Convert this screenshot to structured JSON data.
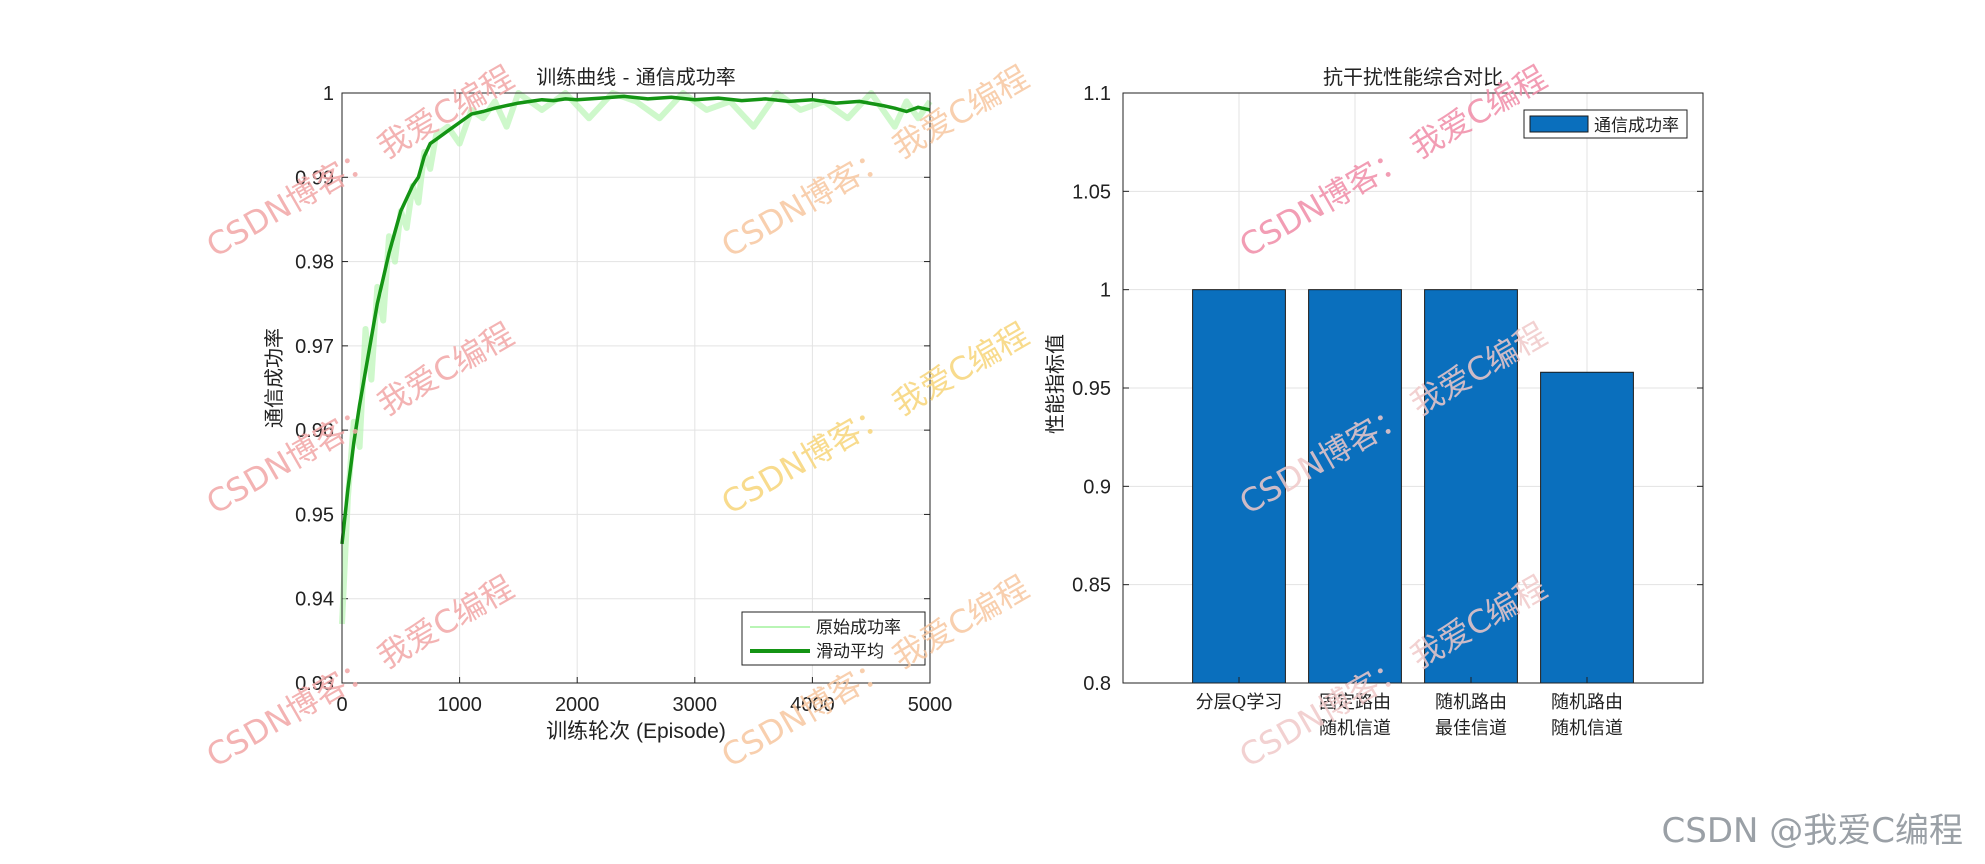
{
  "colors": {
    "raw_line": "#b9f5b5",
    "smooth_line": "#149414",
    "bar": "#0a6fbd",
    "grid": "#e3e3e3",
    "axis": "#222222"
  },
  "watermark": {
    "text": "CSDN博客：  我爱C编程",
    "footer": "CSDN @我爱C编程",
    "colors": [
      "#f2a6a6",
      "#f7c7a0",
      "#f0c9c9",
      "#f7d57a",
      "#f08ca8"
    ]
  },
  "chart_data": [
    {
      "type": "line",
      "title": "训练曲线 - 通信成功率",
      "xlabel": "训练轮次 (Episode)",
      "ylabel": "通信成功率",
      "xlim": [
        0,
        5000
      ],
      "ylim": [
        0.93,
        1.0
      ],
      "xticks": [
        0,
        1000,
        2000,
        3000,
        4000,
        5000
      ],
      "xtick_labels": [
        "0",
        "1000",
        "2000",
        "3000",
        "4000",
        "5000"
      ],
      "yticks": [
        0.93,
        0.94,
        0.95,
        0.96,
        0.97,
        0.98,
        0.99,
        1.0
      ],
      "ytick_labels": [
        "0.93",
        "0.94",
        "0.95",
        "0.96",
        "0.97",
        "0.98",
        "0.99",
        "1"
      ],
      "grid": true,
      "legend_location": "bottom-right",
      "series": [
        {
          "name": "原始成功率",
          "style": "thin-noisy",
          "x": [
            0,
            50,
            100,
            150,
            200,
            250,
            300,
            350,
            400,
            450,
            500,
            550,
            600,
            650,
            700,
            750,
            800,
            900,
            1000,
            1100,
            1200,
            1300,
            1400,
            1500,
            1700,
            1900,
            2100,
            2300,
            2500,
            2700,
            2900,
            3100,
            3300,
            3500,
            3700,
            3900,
            4100,
            4300,
            4500,
            4700,
            4800,
            4900,
            5000
          ],
          "y": [
            0.937,
            0.952,
            0.961,
            0.958,
            0.972,
            0.966,
            0.977,
            0.973,
            0.983,
            0.98,
            0.986,
            0.984,
            0.989,
            0.987,
            0.993,
            0.991,
            0.995,
            0.996,
            0.994,
            0.998,
            0.997,
            0.999,
            0.996,
            1.0,
            0.998,
            1.0,
            0.997,
            1.0,
            0.999,
            0.997,
            1.0,
            0.998,
            0.999,
            0.996,
            1.0,
            0.998,
            0.999,
            0.997,
            1.0,
            0.996,
            0.999,
            0.997,
            0.999
          ]
        },
        {
          "name": "滑动平均",
          "style": "thick",
          "x": [
            0,
            50,
            100,
            150,
            200,
            250,
            300,
            350,
            400,
            450,
            500,
            550,
            600,
            650,
            700,
            750,
            800,
            900,
            1000,
            1100,
            1200,
            1300,
            1400,
            1500,
            1600,
            1700,
            1800,
            1900,
            2000,
            2200,
            2400,
            2600,
            2800,
            3000,
            3200,
            3400,
            3600,
            3800,
            4000,
            4200,
            4400,
            4600,
            4700,
            4800,
            4900,
            5000
          ],
          "y": [
            0.9465,
            0.953,
            0.9585,
            0.963,
            0.967,
            0.971,
            0.975,
            0.978,
            0.981,
            0.9835,
            0.986,
            0.9875,
            0.989,
            0.99,
            0.9925,
            0.994,
            0.9945,
            0.9955,
            0.9965,
            0.9975,
            0.9978,
            0.9982,
            0.9985,
            0.9988,
            0.999,
            0.9992,
            0.9991,
            0.9993,
            0.9992,
            0.9994,
            0.9996,
            0.9993,
            0.9995,
            0.9992,
            0.9994,
            0.9991,
            0.9993,
            0.999,
            0.9992,
            0.9988,
            0.999,
            0.9985,
            0.9982,
            0.9978,
            0.9983,
            0.998
          ]
        }
      ]
    },
    {
      "type": "bar",
      "title": "抗干扰性能综合对比",
      "ylabel": "性能指标值",
      "ylim": [
        0.8,
        1.1
      ],
      "yticks": [
        0.8,
        0.85,
        0.9,
        0.95,
        1.0,
        1.05,
        1.1
      ],
      "ytick_labels": [
        "0.8",
        "0.85",
        "0.9",
        "0.95",
        "1",
        "1.05",
        "1.1"
      ],
      "categories": [
        [
          "分层Q学习"
        ],
        [
          "固定路由",
          "随机信道"
        ],
        [
          "随机路由",
          "最佳信道"
        ],
        [
          "随机路由",
          "随机信道"
        ]
      ],
      "grid": true,
      "legend_location": "top-right",
      "series": [
        {
          "name": "通信成功率",
          "values": [
            1.0,
            1.0,
            1.0,
            0.958
          ]
        }
      ]
    }
  ]
}
